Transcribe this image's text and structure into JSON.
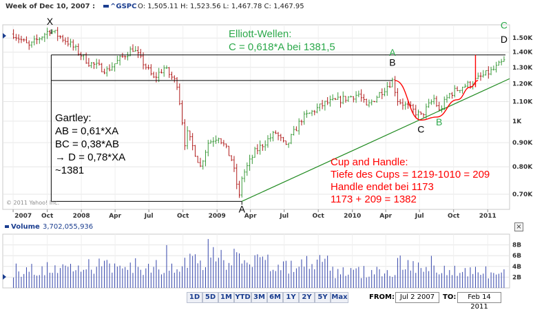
{
  "header": {
    "week_label": "Week of Dec 10, 2007 :",
    "symbol_label": "^GSPC",
    "quote": "O: 1,505.11 H: 1,523.56 L: 1,467.78 C: 1,467.95"
  },
  "volume_header": {
    "label": "Volume",
    "value": "3,702,055,936"
  },
  "copyright": "© 2011 Yahoo! Inc.",
  "close_glyph": "×",
  "range_buttons": [
    "1D",
    "5D",
    "1M",
    "YTD",
    "3M",
    "6M",
    "1Y",
    "2Y",
    "5Y",
    "Max"
  ],
  "range_inputs": {
    "from_label": "FROM:",
    "from_value": "Jul 2 2007",
    "to_label": "TO:",
    "to_value": "Feb 14 2011"
  },
  "colors": {
    "up": "#3a9a3a",
    "down": "#b01b1b",
    "volume": "#3344aa",
    "annotation_red": "#ff0000",
    "annotation_green": "#2ba84a",
    "trendline": "#1f8a1f"
  },
  "chart_data": {
    "type": "ohlc",
    "title": "",
    "xlabel": "",
    "ylabel": "",
    "scale": "log",
    "ylim": [
      650,
      1600
    ],
    "x_range": [
      "2007-06",
      "2011-03"
    ],
    "x_ticks": [
      "2007",
      "Oct",
      "2008",
      "Apr",
      "Jul",
      "Oct",
      "2009",
      "Apr",
      "Jul",
      "Oct",
      "2010",
      "Apr",
      "Jul",
      "Oct",
      "2011"
    ],
    "y_ticks": [
      "1.50K",
      "1.40K",
      "1.30K",
      "1.20K",
      "1.10K",
      "1K",
      "0.90K",
      "0.80K",
      "0.70K"
    ],
    "y_tick_values": [
      1500,
      1400,
      1300,
      1200,
      1100,
      1000,
      900,
      800,
      700
    ],
    "weekly_close_anchors": [
      [
        "2007-07-02",
        1530
      ],
      [
        "2007-08-13",
        1440
      ],
      [
        "2007-10-08",
        1561
      ],
      [
        "2007-11-26",
        1470
      ],
      [
        "2008-01-21",
        1330
      ],
      [
        "2008-03-10",
        1280
      ],
      [
        "2008-05-19",
        1426
      ],
      [
        "2008-07-14",
        1230
      ],
      [
        "2008-08-11",
        1296
      ],
      [
        "2008-09-15",
        1200
      ],
      [
        "2008-10-06",
        900
      ],
      [
        "2008-10-13",
        940
      ],
      [
        "2008-11-17",
        800
      ],
      [
        "2008-12-08",
        900
      ],
      [
        "2009-01-05",
        930
      ],
      [
        "2009-02-09",
        830
      ],
      [
        "2009-03-02",
        690
      ],
      [
        "2009-03-09",
        760
      ],
      [
        "2009-04-13",
        860
      ],
      [
        "2009-06-08",
        945
      ],
      [
        "2009-07-06",
        880
      ],
      [
        "2009-08-17",
        1010
      ],
      [
        "2009-10-19",
        1090
      ],
      [
        "2009-11-30",
        1110
      ],
      [
        "2010-01-18",
        1140
      ],
      [
        "2010-02-08",
        1070
      ],
      [
        "2010-04-19",
        1217
      ],
      [
        "2010-05-03",
        1110
      ],
      [
        "2010-05-24",
        1080
      ],
      [
        "2010-07-05",
        1025
      ],
      [
        "2010-08-09",
        1115
      ],
      [
        "2010-08-23",
        1050
      ],
      [
        "2010-09-20",
        1140
      ],
      [
        "2010-10-25",
        1185
      ],
      [
        "2010-11-15",
        1200
      ],
      [
        "2010-12-13",
        1240
      ],
      [
        "2011-01-17",
        1285
      ],
      [
        "2011-02-14",
        1340
      ]
    ],
    "volume": {
      "label": "Volume",
      "y_ticks": [
        "8B",
        "6B",
        "4B",
        "2B"
      ],
      "y_tick_values": [
        8,
        6,
        4,
        2
      ],
      "units": "billion shares"
    },
    "horizontal_lines": [
      {
        "name": "upper",
        "value": 1381
      },
      {
        "name": "lower",
        "value": 1219
      }
    ],
    "trendline": {
      "from": [
        "2009-03-09",
        676
      ],
      "to": [
        "2011-03-01",
        1230
      ]
    },
    "cup_curve": [
      [
        "2010-04-26",
        1219
      ],
      [
        "2010-07-05",
        1005
      ],
      [
        "2010-08-16",
        1020
      ],
      [
        "2010-10-11",
        1110
      ],
      [
        "2010-11-15",
        1180
      ],
      [
        "2010-12-06",
        1219
      ]
    ],
    "handle_spike": {
      "x": "2010-11-29",
      "from": 1180,
      "to": 1381
    },
    "annotations": [
      {
        "text": "X",
        "color": "black",
        "x": "2007-10-08",
        "y": 1600
      },
      {
        "text": "A",
        "color": "black",
        "x": "2009-03-09",
        "y": 640
      },
      {
        "text": "A",
        "color": "green",
        "x": "2010-04-19",
        "y": 1375
      },
      {
        "text": "B",
        "color": "black",
        "x": "2010-04-19",
        "y": 1310
      },
      {
        "text": "C",
        "color": "black",
        "x": "2010-07-05",
        "y": 945
      },
      {
        "text": "B",
        "color": "green",
        "x": "2010-08-23",
        "y": 980
      },
      {
        "text": "C",
        "color": "green",
        "x": "2011-02-14",
        "y": 1570
      },
      {
        "text": "D",
        "color": "black",
        "x": "2011-02-14",
        "y": 1465
      }
    ],
    "text_blocks": {
      "elliott": [
        "Elliott-Wellen:",
        "C = 0,618*A bei 1381,5"
      ],
      "gartley": [
        "Gartley:",
        "AB = 0,61*XA",
        "BC = 0,38*AB",
        "→ D = 0,78*XA",
        "~1381"
      ],
      "cup_handle": [
        "Cup and Handle:",
        "Tiefe des Cups = 1219-1010 = 209",
        "Handle endet bei 1173",
        "1173 + 209 = 1382"
      ]
    }
  }
}
